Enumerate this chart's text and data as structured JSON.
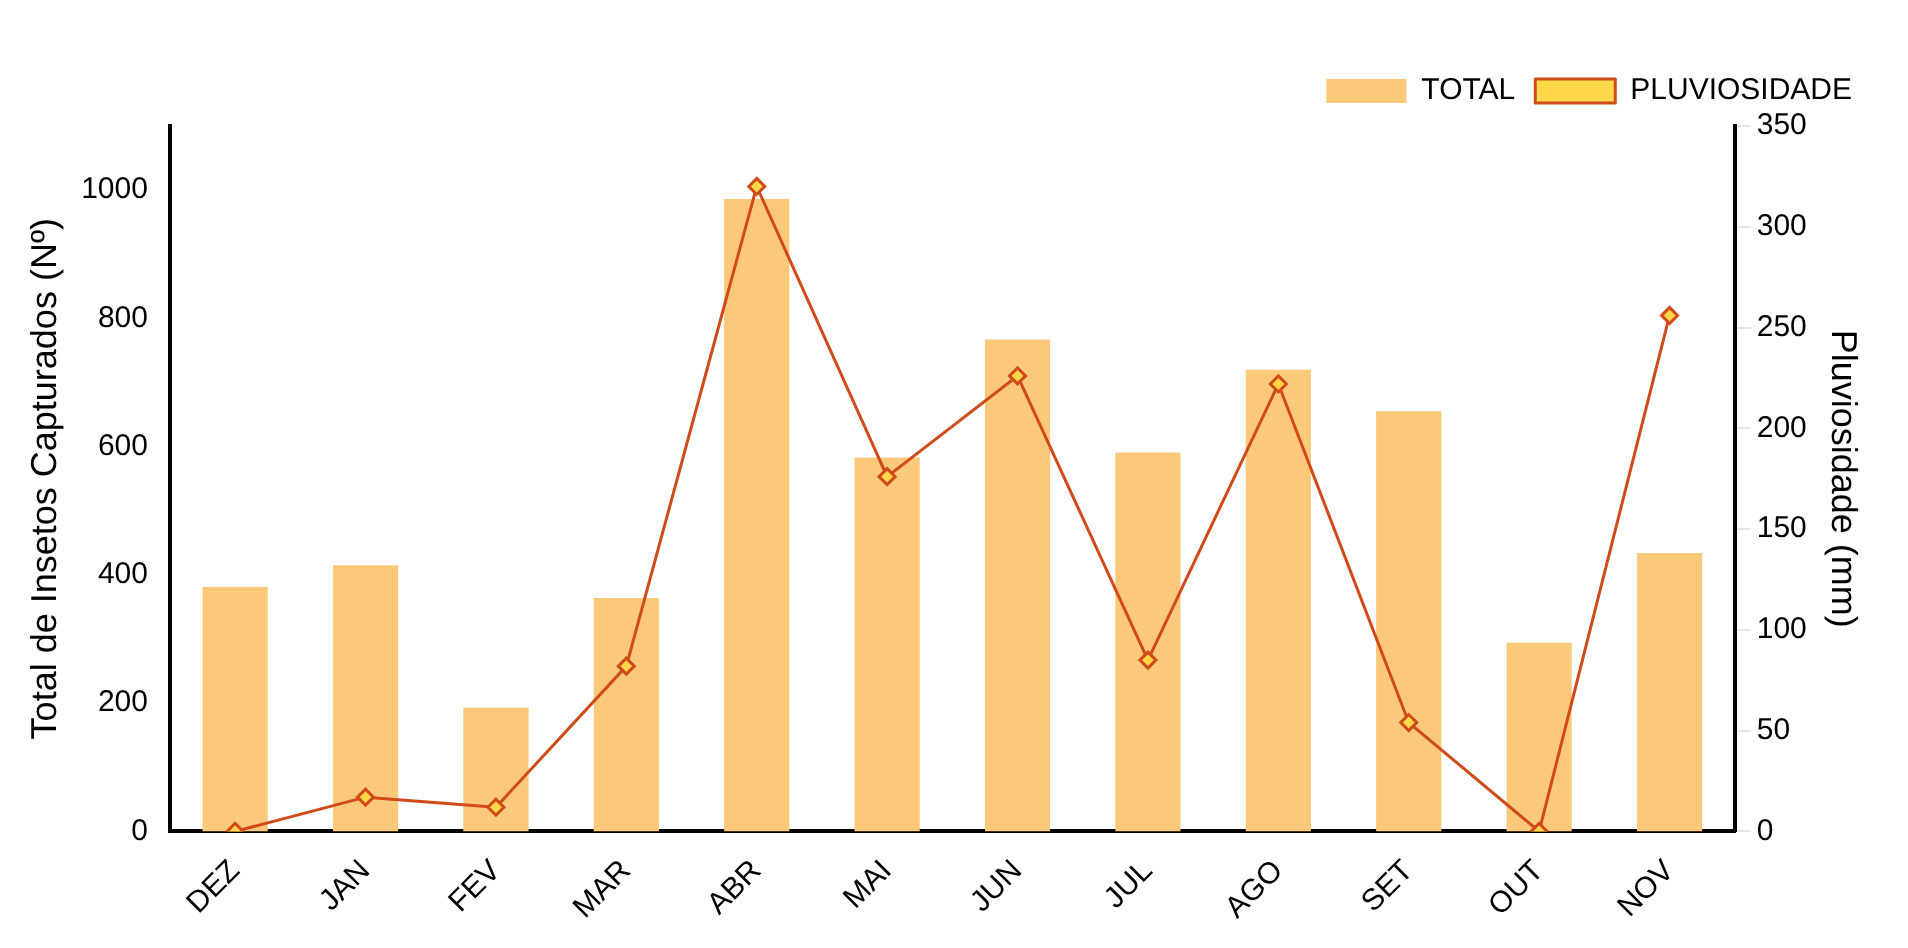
{
  "chart_data": {
    "type": "bar",
    "categories": [
      "DEZ",
      "JAN",
      "FEV",
      "MAR",
      "ABR",
      "MAI",
      "JUN",
      "JUL",
      "AGO",
      "SET",
      "OUT",
      "NOV"
    ],
    "series": [
      {
        "name": "TOTAL",
        "color": "#fcc97a",
        "values": [
          381,
          415,
          193,
          364,
          986,
          583,
          767,
          591,
          720,
          655,
          294,
          434
        ]
      },
      {
        "name": "PLUVIOSIDADE",
        "type": "line",
        "axis": "y2",
        "color": "#d04a1a",
        "marker": "diamond",
        "values": [
          0,
          17,
          12,
          82,
          320,
          176,
          226,
          85,
          222,
          54,
          0,
          256
        ]
      }
    ],
    "ylabel": "Total de Insetos Capturados (Nº)",
    "y2label": "Pluviosidade (mm)",
    "ylim": [
      0,
      1100
    ],
    "yticks": [
      0,
      200,
      400,
      600,
      800,
      1000
    ],
    "y2lim": [
      0,
      350
    ],
    "y2ticks": [
      0,
      50,
      100,
      150,
      200,
      250,
      300,
      350
    ],
    "grid": false,
    "legend": "top right"
  }
}
